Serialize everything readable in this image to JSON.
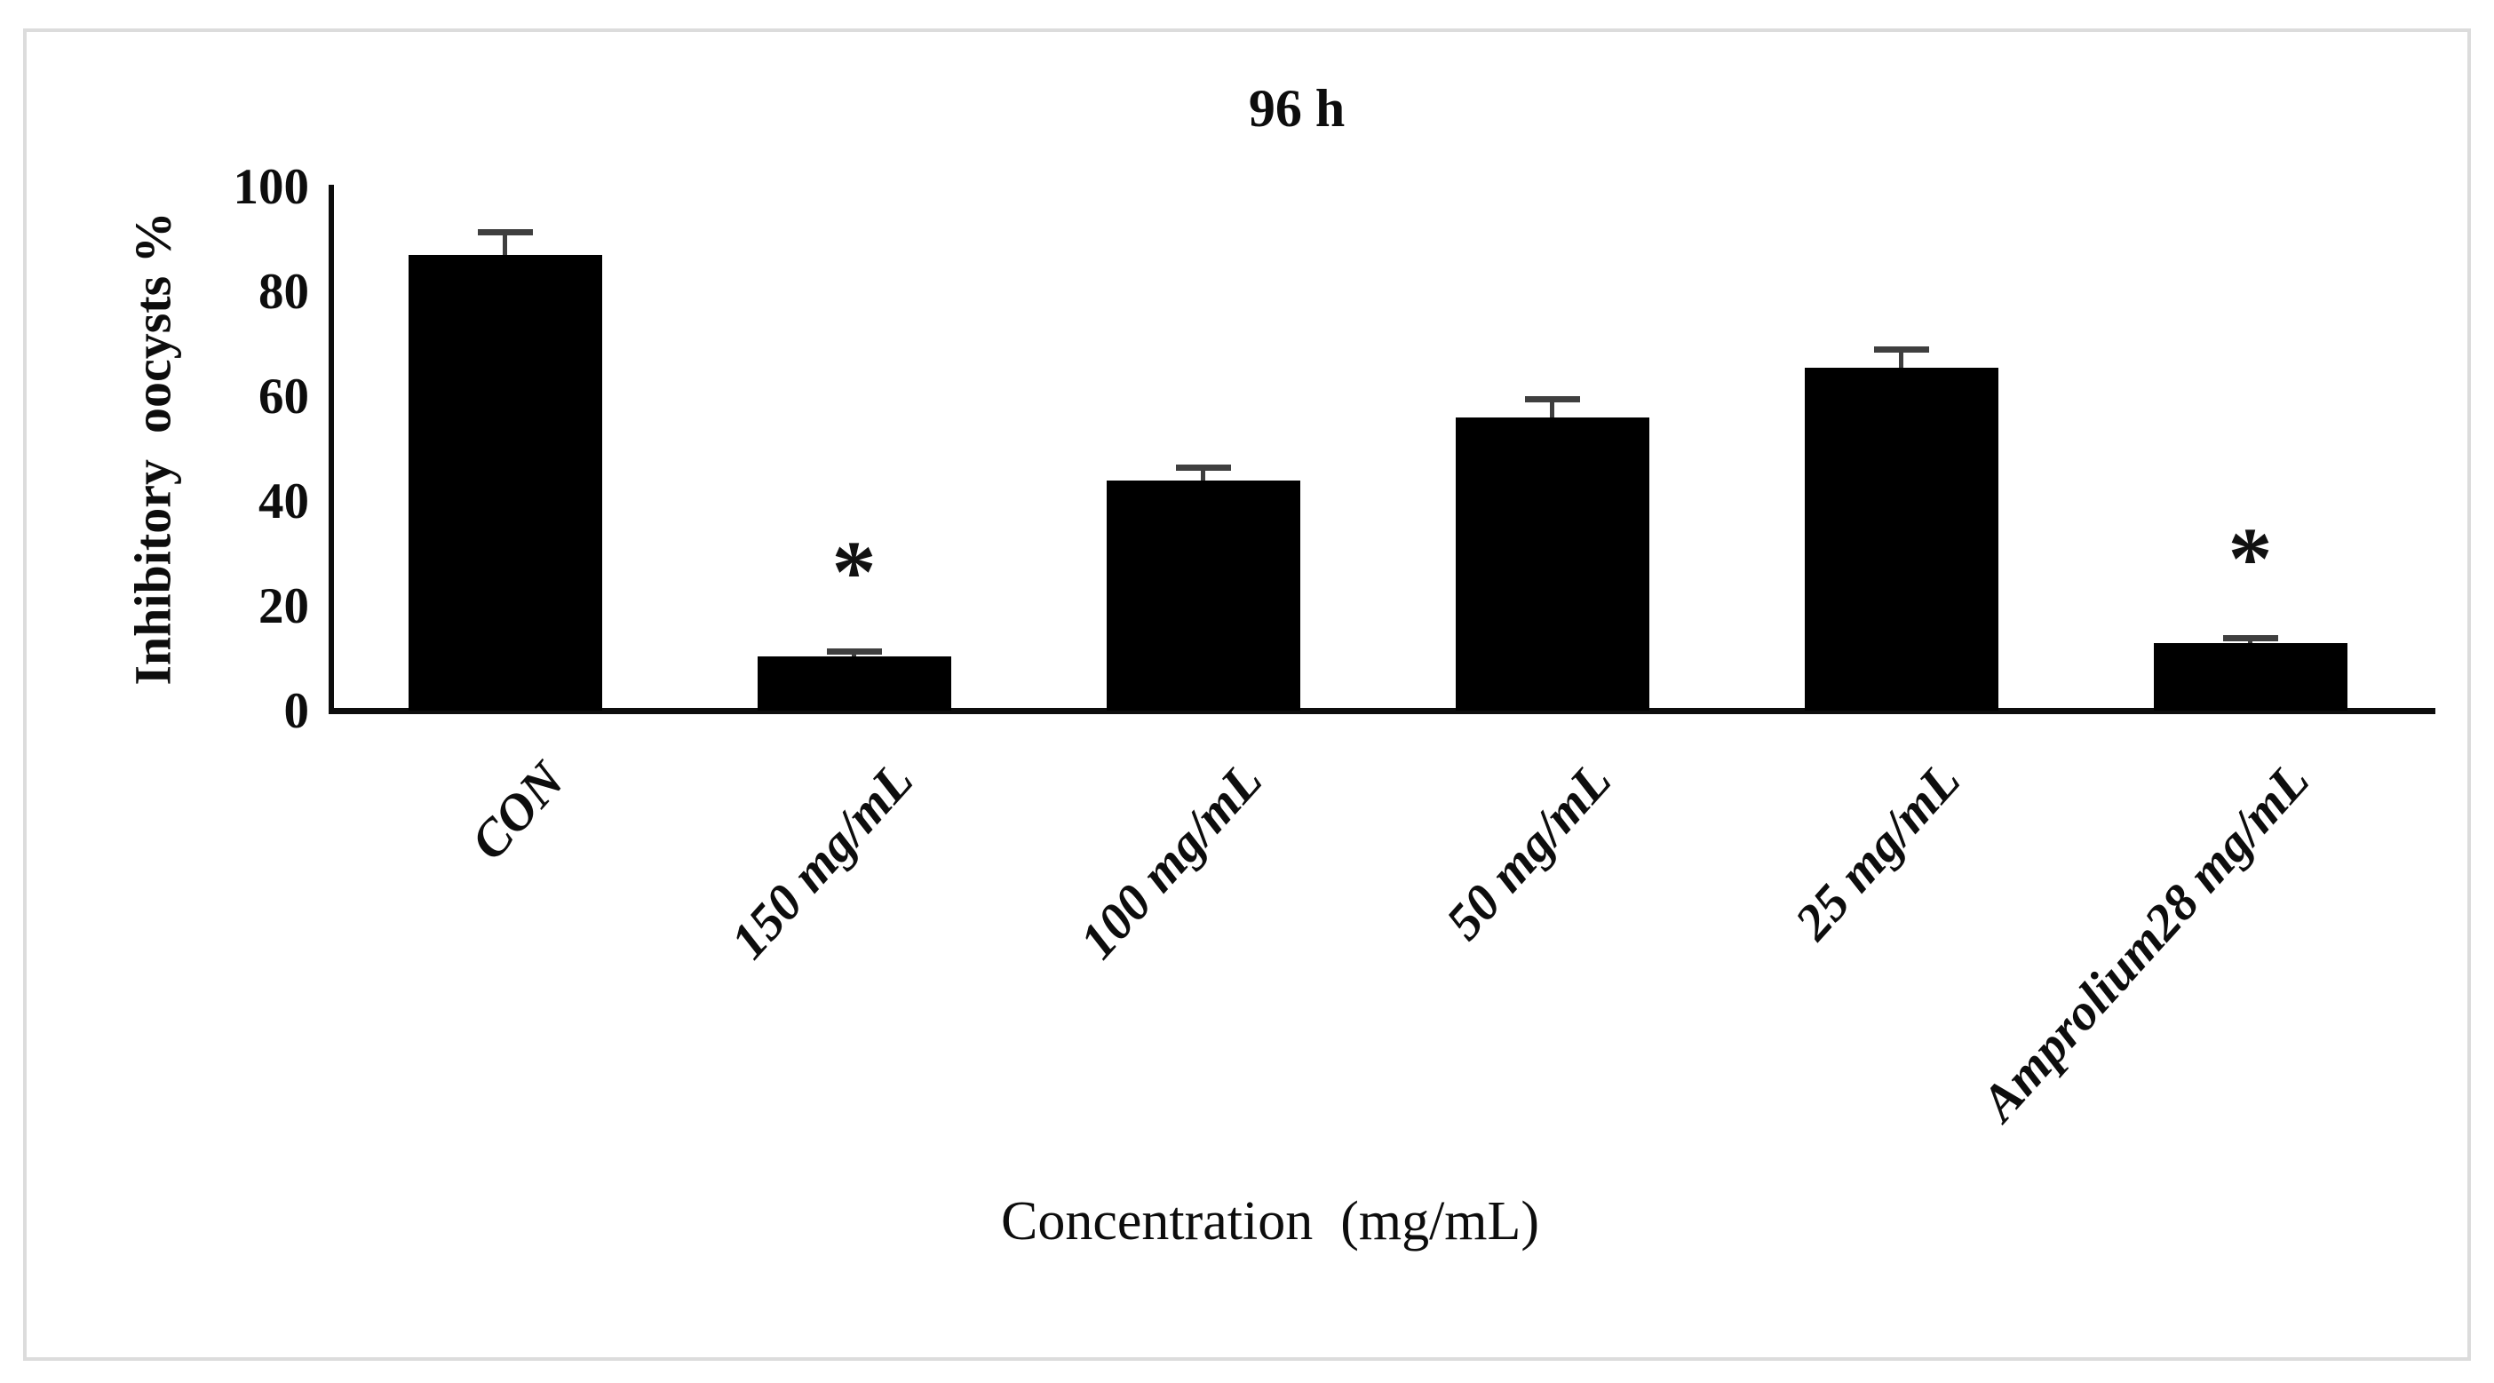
{
  "figure": {
    "title": "96 h",
    "x_axis_title": "Concentration  (mg/mL)",
    "y_axis_title": "Inhibitory  oocysts %",
    "frame_border_color": "#dcdcdc",
    "background_color": "#ffffff"
  },
  "chart_data": {
    "type": "bar",
    "title": "96 h",
    "xlabel": "Concentration  (mg/mL)",
    "ylabel": "Inhibitory  oocysts %",
    "categories": [
      "CON",
      "150 mg/mL",
      "100 mg/mL",
      "50 mg/mL",
      "25 mg/mL",
      "Amprolium28 mg/mL"
    ],
    "values": [
      87,
      10.5,
      44,
      56,
      65.5,
      13
    ],
    "error_bars_plus": [
      4.5,
      1,
      2.5,
      3.5,
      3.5,
      1
    ],
    "significance_markers": [
      "",
      "*",
      "",
      "",
      "",
      "*"
    ],
    "yticks": [
      0,
      20,
      40,
      60,
      80,
      100
    ],
    "ylim": [
      0,
      100
    ],
    "bar_color": "#000000",
    "error_bar_color": "#3f3f3f",
    "grid": false,
    "legend": "none",
    "category_label_rotation_deg": -48,
    "notes": "single data series; asterisks denote significance above 150 mg/mL and Amprolium28 mg/mL bars"
  }
}
